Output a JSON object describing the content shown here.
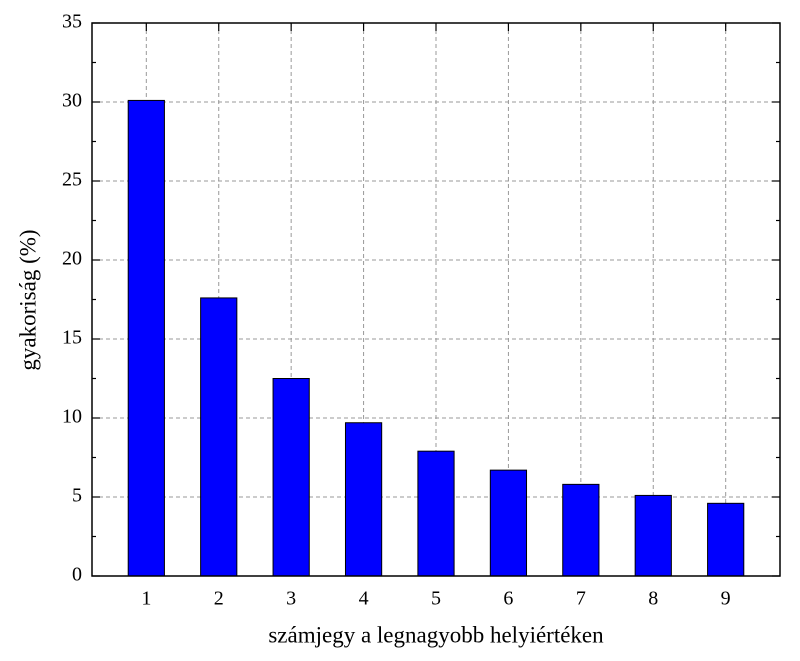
{
  "chart_data": {
    "type": "bar",
    "x": [
      1,
      2,
      3,
      4,
      5,
      6,
      7,
      8,
      9
    ],
    "values": [
      30.1,
      17.6,
      12.5,
      9.7,
      7.9,
      6.7,
      5.8,
      5.1,
      4.6
    ],
    "color": "#0000ff",
    "xlabel": "számjegy a legnagyobb helyiértéken",
    "ylabel": "gyakoriság (%)",
    "xlim": [
      0.25,
      9.75
    ],
    "xticks": [
      1,
      2,
      3,
      4,
      5,
      6,
      7,
      8,
      9
    ],
    "ylim": [
      0,
      35
    ],
    "yticks": [
      0,
      5,
      10,
      15,
      20,
      25,
      30,
      35
    ],
    "grid": true
  }
}
